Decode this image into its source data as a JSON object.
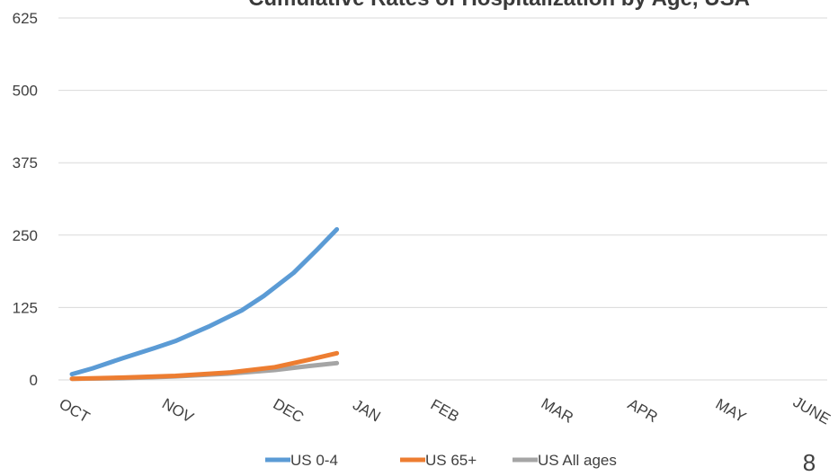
{
  "chart_data": {
    "type": "line",
    "title": "Cumulative Rates of Hospitalization by Age, USA",
    "xlabel": "",
    "ylabel": "",
    "ylim": [
      0,
      625
    ],
    "yticks": [
      0,
      125,
      250,
      375,
      500,
      625
    ],
    "categories": [
      "OCT",
      "NOV",
      "DEC",
      "JAN",
      "FEB",
      "MAR",
      "APR",
      "MAY",
      "JUNE"
    ],
    "grid": true,
    "legend": "bottom",
    "series": [
      {
        "name": "US 0-4",
        "color": "#5b9bd5",
        "x": [
          0,
          0.2,
          0.5,
          0.8,
          1.0,
          1.3,
          1.6,
          1.8,
          2.1,
          2.4,
          2.65
        ],
        "values": [
          10,
          20,
          38,
          55,
          67,
          92,
          120,
          145,
          185,
          225,
          260
        ]
      },
      {
        "name": "US 65+",
        "color": "#ed7d31",
        "x": [
          0,
          0.5,
          1.0,
          1.5,
          1.9,
          2.3,
          2.65
        ],
        "values": [
          2,
          4,
          7,
          13,
          22,
          35,
          46
        ]
      },
      {
        "name": "US All ages",
        "color": "#a5a5a5",
        "x": [
          0,
          0.5,
          1.0,
          1.5,
          1.9,
          2.3,
          2.65
        ],
        "values": [
          2,
          3,
          6,
          11,
          17,
          24,
          29
        ]
      }
    ]
  },
  "page_number": "8"
}
